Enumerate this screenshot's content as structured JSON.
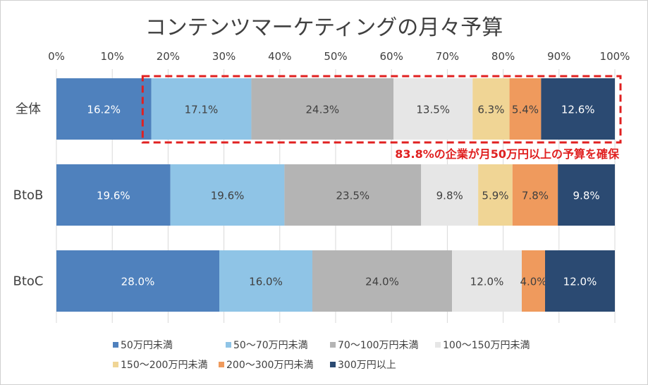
{
  "chart_data": {
    "type": "bar",
    "orientation": "horizontal",
    "stacked": "percent",
    "title": "コンテンツマーケティングの月々予算",
    "categories": [
      "全体",
      "BtoB",
      "BtoC"
    ],
    "x_ticks": [
      "0%",
      "10%",
      "20%",
      "30%",
      "40%",
      "50%",
      "60%",
      "70%",
      "80%",
      "90%",
      "100%"
    ],
    "xlim": [
      0,
      100
    ],
    "grid": true,
    "legend_position": "bottom",
    "series": [
      {
        "name": "50万円未満",
        "color": "#4f81bd",
        "label_color": "#ffffff",
        "values": [
          16.2,
          19.6,
          28.0
        ],
        "labels": [
          "16.2%",
          "19.6%",
          "28.0%"
        ]
      },
      {
        "name": "50～70万円未満",
        "color": "#8fc4e6",
        "label_color": "#404040",
        "values": [
          17.1,
          19.6,
          16.0
        ],
        "labels": [
          "17.1%",
          "19.6%",
          "16.0%"
        ]
      },
      {
        "name": "70～100万円未満",
        "color": "#b4b4b4",
        "label_color": "#404040",
        "values": [
          24.3,
          23.5,
          24.0
        ],
        "labels": [
          "24.3%",
          "23.5%",
          "24.0%"
        ]
      },
      {
        "name": "100～150万円未満",
        "color": "#e6e6e6",
        "label_color": "#404040",
        "values": [
          13.5,
          9.8,
          12.0
        ],
        "labels": [
          "13.5%",
          "9.8%",
          "12.0%"
        ]
      },
      {
        "name": "150～200万円未満",
        "color": "#f0d595",
        "label_color": "#404040",
        "values": [
          6.3,
          5.9,
          0
        ],
        "labels": [
          "6.3%",
          "5.9%",
          ""
        ]
      },
      {
        "name": "200～300万円未満",
        "color": "#ef9a5d",
        "label_color": "#404040",
        "values": [
          5.4,
          7.8,
          4.0
        ],
        "labels": [
          "5.4%",
          "7.8%",
          "4.0%"
        ]
      },
      {
        "name": "300万円以上",
        "color": "#2b4a72",
        "label_color": "#ffffff",
        "values": [
          12.6,
          9.8,
          12.0
        ],
        "labels": [
          "12.6%",
          "9.8%",
          "12.0%"
        ]
      }
    ],
    "annotation": {
      "text": "83.8%の企業が月50万円以上の予算を確保",
      "color": "#e02020",
      "highlight_category": "全体",
      "highlight_from_percent": 16.2,
      "highlight_to_percent": 100
    }
  }
}
